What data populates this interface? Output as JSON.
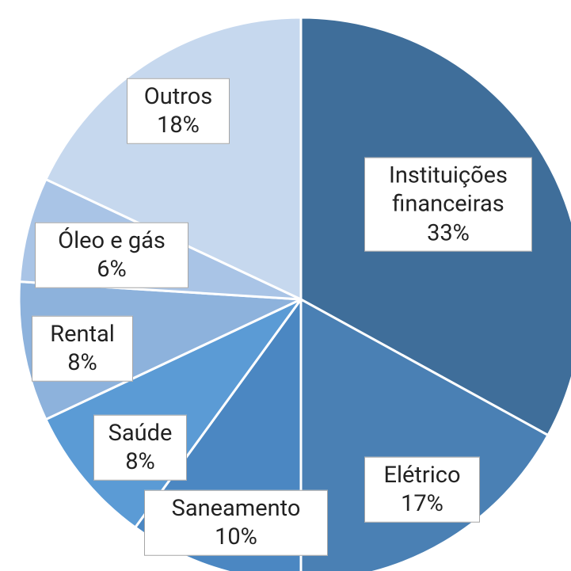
{
  "chart_data": {
    "type": "pie",
    "categories": [
      "Instituições financeiras",
      "Elétrico",
      "Saneamento",
      "Saúde",
      "Rental",
      "Óleo e gás",
      "Outros"
    ],
    "values": [
      33,
      17,
      10,
      8,
      8,
      6,
      18
    ],
    "value_labels": [
      "33%",
      "17%",
      "10%",
      "8%",
      "8%",
      "6%",
      "18%"
    ],
    "colors": [
      "#3f6e9a",
      "#4a80b4",
      "#4b87c2",
      "#5b9bd5",
      "#8db2dc",
      "#a9c4e6",
      "#c6d8ee"
    ]
  }
}
